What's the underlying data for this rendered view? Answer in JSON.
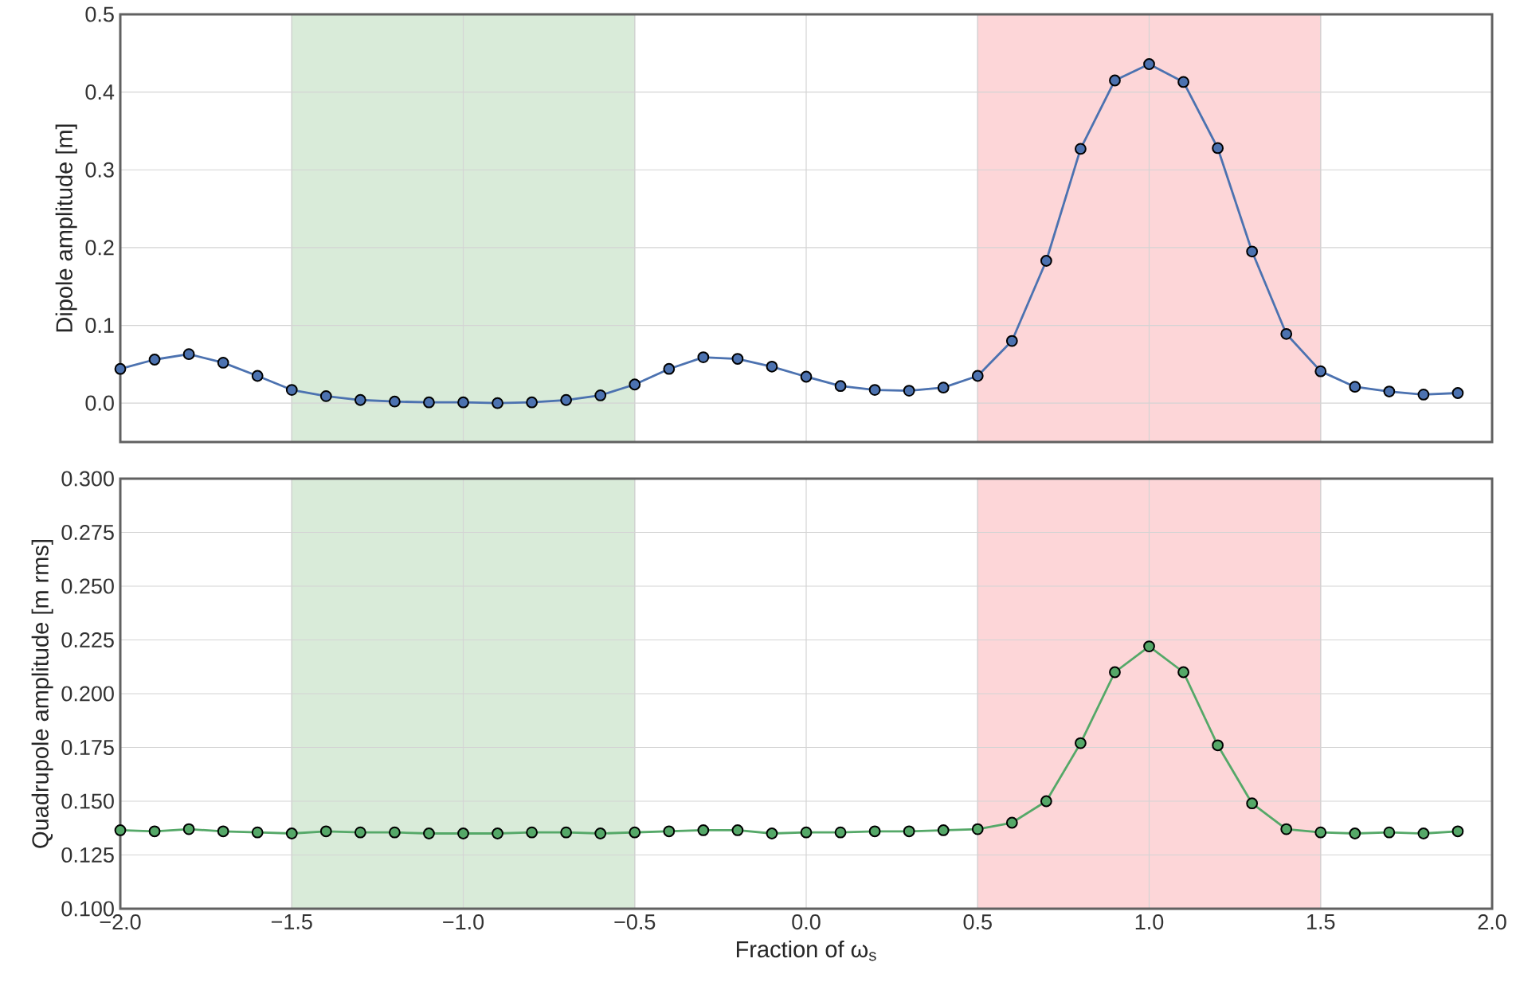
{
  "chart_data": [
    {
      "type": "line",
      "ylabel": "Dipole amplitude [m]",
      "x": [
        -2.0,
        -1.9,
        -1.8,
        -1.7,
        -1.6,
        -1.5,
        -1.4,
        -1.3,
        -1.2,
        -1.1,
        -1.0,
        -0.9,
        -0.8,
        -0.7,
        -0.6,
        -0.5,
        -0.4,
        -0.3,
        -0.2,
        -0.1,
        0.0,
        0.1,
        0.2,
        0.3,
        0.4,
        0.5,
        0.6,
        0.7,
        0.8,
        0.9,
        1.0,
        1.1,
        1.2,
        1.3,
        1.4,
        1.5,
        1.6,
        1.7,
        1.8,
        1.9
      ],
      "series": [
        {
          "color": "#4c72b0",
          "values": [
            0.044,
            0.056,
            0.063,
            0.052,
            0.035,
            0.017,
            0.009,
            0.004,
            0.002,
            0.001,
            0.001,
            0.0,
            0.001,
            0.004,
            0.01,
            0.024,
            0.044,
            0.059,
            0.057,
            0.047,
            0.034,
            0.022,
            0.017,
            0.016,
            0.02,
            0.035,
            0.08,
            0.183,
            0.327,
            0.415,
            0.436,
            0.413,
            0.328,
            0.195,
            0.089,
            0.041,
            0.021,
            0.015,
            0.011,
            0.013
          ]
        }
      ],
      "xlim": [
        -2.0,
        2.0
      ],
      "xticks": [
        {
          "value": -2.0,
          "label": null
        },
        {
          "value": -1.5,
          "label": null
        },
        {
          "value": -1.0,
          "label": null
        },
        {
          "value": -0.5,
          "label": null
        },
        {
          "value": 0.0,
          "label": null
        },
        {
          "value": 0.5,
          "label": null
        },
        {
          "value": 1.0,
          "label": null
        },
        {
          "value": 1.5,
          "label": null
        },
        {
          "value": 2.0,
          "label": null
        }
      ],
      "ylim": [
        -0.05,
        0.5
      ],
      "yticks": [
        {
          "value": 0.0,
          "label": "0.0"
        },
        {
          "value": 0.1,
          "label": "0.1"
        },
        {
          "value": 0.2,
          "label": "0.2"
        },
        {
          "value": 0.3,
          "label": "0.3"
        },
        {
          "value": 0.4,
          "label": "0.4"
        },
        {
          "value": 0.5,
          "label": "0.5"
        }
      ],
      "bands": [
        {
          "axis": "x",
          "from": -1.5,
          "to": -0.5,
          "color": "#d9ebd9"
        },
        {
          "axis": "x",
          "from": 0.5,
          "to": 1.5,
          "color": "#fdd6d8"
        }
      ],
      "tick_labels": "y",
      "grid": true,
      "marker": "circle",
      "line_style": "solid"
    },
    {
      "type": "line",
      "ylabel": "Quadrupole amplitude [m rms]",
      "xlabel": "Fraction of ω$_{s}$",
      "x": [
        -2.0,
        -1.9,
        -1.8,
        -1.7,
        -1.6,
        -1.5,
        -1.4,
        -1.3,
        -1.2,
        -1.1,
        -1.0,
        -0.9,
        -0.8,
        -0.7,
        -0.6,
        -0.5,
        -0.4,
        -0.3,
        -0.2,
        -0.1,
        0.0,
        0.1,
        0.2,
        0.3,
        0.4,
        0.5,
        0.6,
        0.7,
        0.8,
        0.9,
        1.0,
        1.1,
        1.2,
        1.3,
        1.4,
        1.5,
        1.6,
        1.7,
        1.8,
        1.9
      ],
      "series": [
        {
          "color": "#55a868",
          "values": [
            0.1365,
            0.136,
            0.137,
            0.136,
            0.1355,
            0.135,
            0.136,
            0.1355,
            0.1355,
            0.135,
            0.135,
            0.135,
            0.1355,
            0.1355,
            0.135,
            0.1355,
            0.136,
            0.1365,
            0.1365,
            0.135,
            0.1355,
            0.1355,
            0.136,
            0.136,
            0.1365,
            0.137,
            0.14,
            0.15,
            0.177,
            0.21,
            0.222,
            0.21,
            0.176,
            0.149,
            0.137,
            0.1355,
            0.135,
            0.1355,
            0.135,
            0.136
          ]
        }
      ],
      "xlim": [
        -2.0,
        2.0
      ],
      "xticks": [
        {
          "value": -2.0,
          "label": "−2.0"
        },
        {
          "value": -1.5,
          "label": "−1.5"
        },
        {
          "value": -1.0,
          "label": "−1.0"
        },
        {
          "value": -0.5,
          "label": "−0.5"
        },
        {
          "value": 0.0,
          "label": "0.0"
        },
        {
          "value": 0.5,
          "label": "0.5"
        },
        {
          "value": 1.0,
          "label": "1.0"
        },
        {
          "value": 1.5,
          "label": "1.5"
        },
        {
          "value": 2.0,
          "label": "2.0"
        }
      ],
      "ylim": [
        0.1,
        0.3
      ],
      "yticks": [
        {
          "value": 0.1,
          "label": "0.100"
        },
        {
          "value": 0.125,
          "label": "0.125"
        },
        {
          "value": 0.15,
          "label": "0.150"
        },
        {
          "value": 0.175,
          "label": "0.175"
        },
        {
          "value": 0.2,
          "label": "0.200"
        },
        {
          "value": 0.225,
          "label": "0.225"
        },
        {
          "value": 0.25,
          "label": "0.250"
        },
        {
          "value": 0.275,
          "label": "0.275"
        },
        {
          "value": 0.3,
          "label": "0.300"
        }
      ],
      "bands": [
        {
          "axis": "x",
          "from": -1.5,
          "to": -0.5,
          "color": "#d9ebd9"
        },
        {
          "axis": "x",
          "from": 0.5,
          "to": 1.5,
          "color": "#fdd6d8"
        }
      ],
      "grid": true,
      "marker": "circle",
      "line_style": "solid"
    }
  ]
}
